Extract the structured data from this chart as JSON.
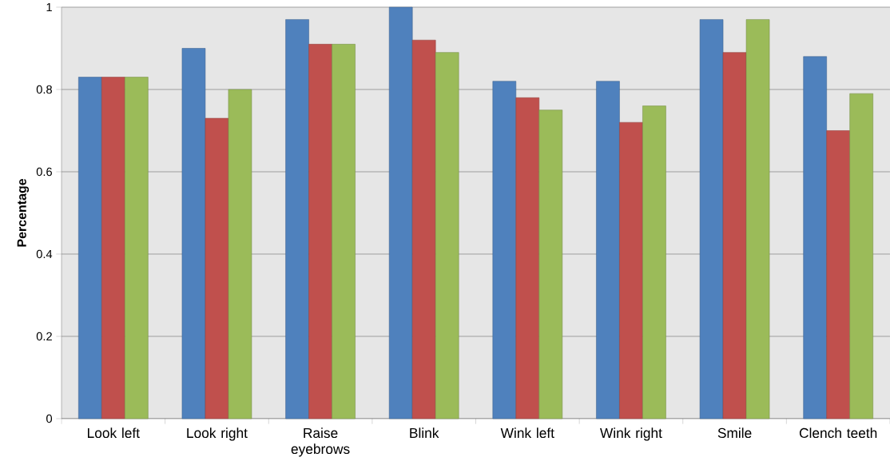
{
  "chart_data": {
    "type": "bar",
    "ylabel": "Percentage",
    "categories": [
      "Look left",
      "Look right",
      "Raise eyebrows",
      "Blink",
      "Wink left",
      "Wink right",
      "Smile",
      "Clench teeth"
    ],
    "series": [
      {
        "color": "#4f81bd",
        "values": [
          0.83,
          0.9,
          0.97,
          1.0,
          0.82,
          0.82,
          0.97,
          0.88
        ]
      },
      {
        "color": "#c0504d",
        "values": [
          0.83,
          0.73,
          0.91,
          0.92,
          0.78,
          0.72,
          0.89,
          0.7
        ]
      },
      {
        "color": "#9bbb59",
        "values": [
          0.83,
          0.8,
          0.91,
          0.89,
          0.75,
          0.76,
          0.97,
          0.79
        ]
      }
    ],
    "ylim": [
      0,
      1
    ],
    "yticks": [
      0,
      0.2,
      0.4,
      0.6,
      0.8,
      1
    ],
    "grid": "y"
  }
}
